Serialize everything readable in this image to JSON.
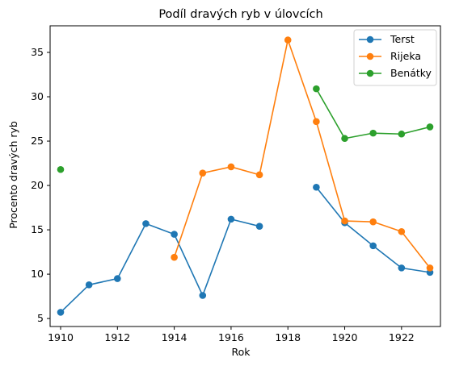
{
  "chart_data": {
    "type": "line",
    "title": "Podíl dravých ryb v úlovcích",
    "xlabel": "Rok",
    "ylabel": "Procento dravých ryb",
    "xlim": [
      1909.63,
      1923.37
    ],
    "ylim": [
      4.1,
      38.0
    ],
    "xticks": [
      1910,
      1912,
      1914,
      1916,
      1918,
      1920,
      1922
    ],
    "yticks": [
      5,
      10,
      15,
      20,
      25,
      30,
      35
    ],
    "grid": false,
    "legend_position": "top-right",
    "series": [
      {
        "name": "Terst",
        "color": "#1f77b4",
        "points": [
          [
            1910,
            5.7
          ],
          [
            1911,
            8.8
          ],
          [
            1912,
            9.5
          ],
          [
            1913,
            15.7
          ],
          [
            1914,
            14.5
          ],
          [
            1915,
            7.6
          ],
          [
            1916,
            16.2
          ],
          [
            1917,
            15.4
          ],
          [
            1918,
            null
          ],
          [
            1919,
            19.8
          ],
          [
            1920,
            15.8
          ],
          [
            1921,
            13.2
          ],
          [
            1922,
            10.7
          ],
          [
            1923,
            10.2
          ]
        ]
      },
      {
        "name": "Rijeka",
        "color": "#ff7f0e",
        "points": [
          [
            1910,
            null
          ],
          [
            1911,
            null
          ],
          [
            1912,
            null
          ],
          [
            1913,
            null
          ],
          [
            1914,
            11.9
          ],
          [
            1915,
            21.4
          ],
          [
            1916,
            22.1
          ],
          [
            1917,
            21.2
          ],
          [
            1918,
            36.4
          ],
          [
            1919,
            27.2
          ],
          [
            1920,
            16.0
          ],
          [
            1921,
            15.9
          ],
          [
            1922,
            14.8
          ],
          [
            1923,
            10.7
          ]
        ]
      },
      {
        "name": "Benátky",
        "color": "#2ca02c",
        "points": [
          [
            1910,
            21.8
          ],
          [
            1911,
            null
          ],
          [
            1912,
            null
          ],
          [
            1913,
            null
          ],
          [
            1914,
            null
          ],
          [
            1915,
            null
          ],
          [
            1916,
            null
          ],
          [
            1917,
            null
          ],
          [
            1918,
            null
          ],
          [
            1919,
            30.9
          ],
          [
            1920,
            25.3
          ],
          [
            1921,
            25.9
          ],
          [
            1922,
            25.8
          ],
          [
            1923,
            26.6
          ]
        ]
      }
    ]
  }
}
